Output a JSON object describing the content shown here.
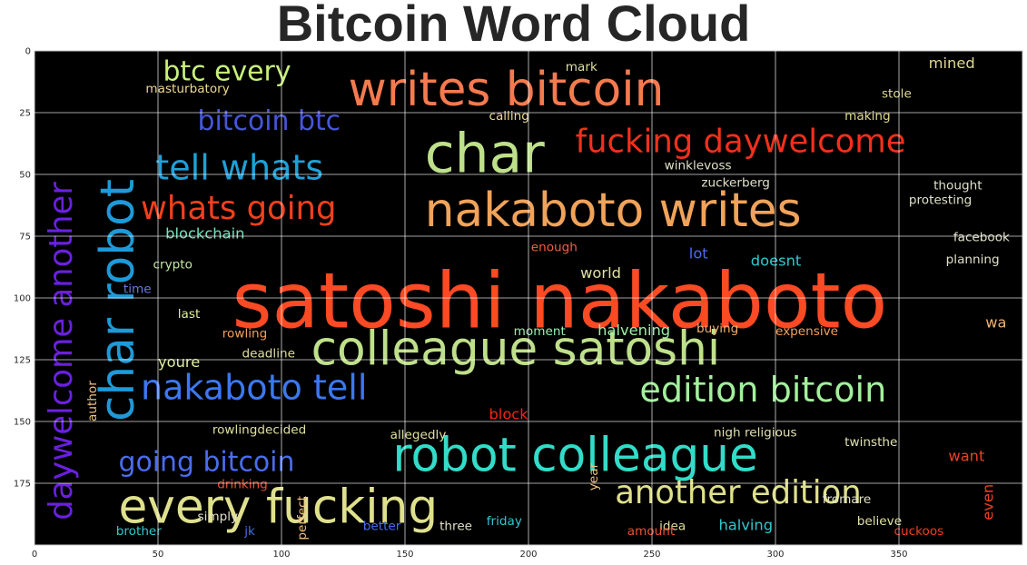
{
  "chart_data": {
    "type": "wordcloud",
    "title": "Bitcoin Word Cloud",
    "background": "#000000",
    "xlim": [
      0,
      400
    ],
    "ylim": [
      200,
      0
    ],
    "x_ticks": [
      0,
      50,
      100,
      150,
      200,
      250,
      300,
      350
    ],
    "y_ticks": [
      0,
      25,
      50,
      75,
      100,
      125,
      150,
      175
    ],
    "grid": true,
    "words": [
      {
        "text": "satoshi nakaboto",
        "x": 80,
        "y": 112,
        "size": 31,
        "color": "#fb4a24"
      },
      {
        "text": "nakaboto writes",
        "x": 158,
        "y": 71,
        "size": 19,
        "color": "#f0a35a"
      },
      {
        "text": "writes bitcoin",
        "x": 127,
        "y": 22,
        "size": 19,
        "color": "#f57a4e"
      },
      {
        "text": "colleague satoshi",
        "x": 112,
        "y": 127,
        "size": 19,
        "color": "#bfe08a"
      },
      {
        "text": "robot colleague",
        "x": 145,
        "y": 170,
        "size": 19,
        "color": "#32dcc8"
      },
      {
        "text": "every fucking",
        "x": 34,
        "y": 191,
        "size": 19,
        "color": "#dfe08c"
      },
      {
        "text": "char",
        "x": 158,
        "y": 49,
        "size": 22,
        "color": "#bfe08a"
      },
      {
        "text": "fucking daywelcome",
        "x": 219,
        "y": 41,
        "size": 13,
        "color": "#f2301c"
      },
      {
        "text": "whats going",
        "x": 43,
        "y": 68,
        "size": 13,
        "color": "#f2401c"
      },
      {
        "text": "edition bitcoin",
        "x": 245,
        "y": 142,
        "size": 14,
        "color": "#a2f09c"
      },
      {
        "text": "another edition",
        "x": 235,
        "y": 183,
        "size": 13,
        "color": "#dfe08c"
      },
      {
        "text": "nakaboto tell",
        "x": 43,
        "y": 141,
        "size": 14,
        "color": "#3c78f0"
      },
      {
        "text": "going bitcoin",
        "x": 34,
        "y": 170,
        "size": 11,
        "color": "#4a6cf0"
      },
      {
        "text": "bitcoin btc",
        "x": 66,
        "y": 32,
        "size": 11,
        "color": "#4656d8"
      },
      {
        "text": "btc every",
        "x": 52,
        "y": 12,
        "size": 11,
        "color": "#c8f07a"
      },
      {
        "text": "tell whats",
        "x": 49,
        "y": 52,
        "size": 14,
        "color": "#1ea0d8"
      },
      {
        "text": "char robot",
        "x": 40,
        "y": 150,
        "size": 19,
        "color": "#1e9ad8",
        "rotate": -90
      },
      {
        "text": "daywelcome another",
        "x": 15,
        "y": 190,
        "size": 13,
        "color": "#6a20e0",
        "rotate": -90
      },
      {
        "text": "mined",
        "x": 362,
        "y": 7,
        "size": 6,
        "color": "#e0d890"
      },
      {
        "text": "stole",
        "x": 343,
        "y": 19,
        "size": 5,
        "color": "#e0d890"
      },
      {
        "text": "making",
        "x": 328,
        "y": 28,
        "size": 5,
        "color": "#e0d890"
      },
      {
        "text": "blockchain",
        "x": 53,
        "y": 76,
        "size": 6,
        "color": "#7ae0c0"
      },
      {
        "text": "crypto",
        "x": 48,
        "y": 88,
        "size": 5,
        "color": "#c0e8a0"
      },
      {
        "text": "time",
        "x": 36,
        "y": 98,
        "size": 5,
        "color": "#6a7ad8"
      },
      {
        "text": "world",
        "x": 221,
        "y": 92,
        "size": 6,
        "color": "#dfe0a0"
      },
      {
        "text": "lot",
        "x": 265,
        "y": 84,
        "size": 6,
        "color": "#4a6cf0"
      },
      {
        "text": "doesnt",
        "x": 290,
        "y": 87,
        "size": 6,
        "color": "#30c8d0"
      },
      {
        "text": "facebook",
        "x": 372,
        "y": 77,
        "size": 5,
        "color": "#e0e0c8"
      },
      {
        "text": "planning",
        "x": 369,
        "y": 86,
        "size": 5,
        "color": "#e0e0c8"
      },
      {
        "text": "enough",
        "x": 201,
        "y": 81,
        "size": 5,
        "color": "#f06040"
      },
      {
        "text": "halvening",
        "x": 228,
        "y": 115,
        "size": 6,
        "color": "#9af0a8"
      },
      {
        "text": "moment",
        "x": 194,
        "y": 115,
        "size": 5,
        "color": "#9af0a8"
      },
      {
        "text": "buying",
        "x": 268,
        "y": 114,
        "size": 5,
        "color": "#f0b070"
      },
      {
        "text": "expensive",
        "x": 300,
        "y": 115,
        "size": 5,
        "color": "#f0a060"
      },
      {
        "text": "rowling",
        "x": 76,
        "y": 116,
        "size": 5,
        "color": "#f0a060"
      },
      {
        "text": "deadline",
        "x": 84,
        "y": 124,
        "size": 5,
        "color": "#e0e0a0"
      },
      {
        "text": "youre",
        "x": 50,
        "y": 128,
        "size": 6,
        "color": "#e0f0a0"
      },
      {
        "text": "last",
        "x": 58,
        "y": 108,
        "size": 5,
        "color": "#e0f0a0"
      },
      {
        "text": "block",
        "x": 184,
        "y": 149,
        "size": 6,
        "color": "#f02814"
      },
      {
        "text": "rowlingdecided",
        "x": 72,
        "y": 155,
        "size": 5,
        "color": "#e0e0a0"
      },
      {
        "text": "allegedly",
        "x": 144,
        "y": 157,
        "size": 5,
        "color": "#e0e0a0"
      },
      {
        "text": "nigh religious",
        "x": 275,
        "y": 156,
        "size": 5,
        "color": "#e0e0b0"
      },
      {
        "text": "twinsthe",
        "x": 328,
        "y": 160,
        "size": 5,
        "color": "#e0e0b0"
      },
      {
        "text": "want",
        "x": 370,
        "y": 166,
        "size": 6,
        "color": "#f04020"
      },
      {
        "text": "drinking",
        "x": 74,
        "y": 177,
        "size": 5,
        "color": "#f05030"
      },
      {
        "text": "brother",
        "x": 33,
        "y": 196,
        "size": 5,
        "color": "#30c8d0"
      },
      {
        "text": "better",
        "x": 133,
        "y": 194,
        "size": 5,
        "color": "#4a6cf0"
      },
      {
        "text": "friday",
        "x": 183,
        "y": 192,
        "size": 5,
        "color": "#30c8d0"
      },
      {
        "text": "idea",
        "x": 253,
        "y": 194,
        "size": 5,
        "color": "#dfe0a0"
      },
      {
        "text": "halving",
        "x": 277,
        "y": 194,
        "size": 6,
        "color": "#30c8d0"
      },
      {
        "text": "believe",
        "x": 333,
        "y": 192,
        "size": 5,
        "color": "#dfe0a0"
      },
      {
        "text": "cuckoos",
        "x": 348,
        "y": 196,
        "size": 5,
        "color": "#f04020"
      },
      {
        "text": "winklevoss",
        "x": 255,
        "y": 48,
        "size": 5,
        "color": "#e0e0c8"
      },
      {
        "text": "zuckerberg",
        "x": 270,
        "y": 55,
        "size": 5,
        "color": "#e0e0c8"
      },
      {
        "text": "thought",
        "x": 364,
        "y": 56,
        "size": 5,
        "color": "#e0e0c8"
      },
      {
        "text": "protesting",
        "x": 354,
        "y": 62,
        "size": 5,
        "color": "#e0e0c8"
      },
      {
        "text": "masturbatory",
        "x": 45,
        "y": 17,
        "size": 5,
        "color": "#f0d890"
      },
      {
        "text": "calling",
        "x": 184,
        "y": 28,
        "size": 5,
        "color": "#f0d890"
      },
      {
        "text": "mark",
        "x": 215,
        "y": 8,
        "size": 5,
        "color": "#dfe0a0"
      },
      {
        "text": "year",
        "x": 228,
        "y": 178,
        "size": 5,
        "color": "#f0c080",
        "rotate": -90
      },
      {
        "text": "perfect",
        "x": 110,
        "y": 198,
        "size": 5,
        "color": "#f0c080",
        "rotate": -90
      },
      {
        "text": "author",
        "x": 25,
        "y": 150,
        "size": 5,
        "color": "#f0c080",
        "rotate": -90
      },
      {
        "text": "wa",
        "x": 385,
        "y": 112,
        "size": 6,
        "color": "#f0b070"
      },
      {
        "text": "even",
        "x": 388,
        "y": 190,
        "size": 6,
        "color": "#f04020",
        "rotate": -90
      },
      {
        "text": "jk",
        "x": 85,
        "y": 196,
        "size": 5,
        "color": "#4a6cf0"
      },
      {
        "text": "three",
        "x": 164,
        "y": 194,
        "size": 5,
        "color": "#e0e0c8"
      },
      {
        "text": "amount",
        "x": 240,
        "y": 196,
        "size": 5,
        "color": "#f05030"
      },
      {
        "text": "fromare",
        "x": 319,
        "y": 183,
        "size": 5,
        "color": "#e0e0c8"
      },
      {
        "text": "simply",
        "x": 66,
        "y": 190,
        "size": 5,
        "color": "#e0e0c8"
      }
    ]
  }
}
